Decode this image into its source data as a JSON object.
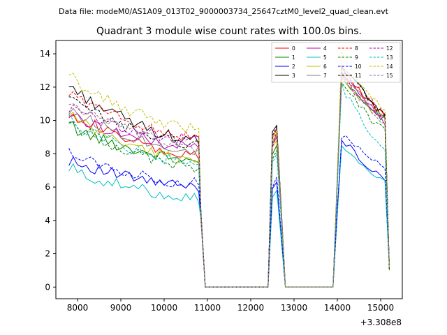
{
  "chart_data": {
    "type": "line",
    "suptitle": "Data file: modeM0/AS1A09_013T02_9000003734_25647cztM0_level2_quad_clean.evt",
    "title": "Quadrant 3 module wise count rates with 100.0s bins.",
    "xlabel": "",
    "ylabel": "",
    "x_offset_label": "+3.308e8",
    "xlim": [
      7500,
      15500
    ],
    "ylim": [
      -0.7,
      14.8
    ],
    "x_ticks": [
      8000,
      9000,
      10000,
      11000,
      12000,
      13000,
      14000,
      15000
    ],
    "x_tick_labels": [
      "8000",
      "9000",
      "10000",
      "11000",
      "12000",
      "13000",
      "14000",
      "15000"
    ],
    "y_ticks": [
      0,
      2,
      4,
      6,
      8,
      10,
      12,
      14
    ],
    "y_tick_labels": [
      "0",
      "2",
      "4",
      "6",
      "8",
      "10",
      "12",
      "14"
    ],
    "legend_position": "top-right",
    "legend_columns": 4,
    "segments": [
      {
        "start": 7800,
        "end": 10800,
        "step": 100,
        "kind": "decay",
        "tail": [
          10850,
          10950
        ]
      },
      {
        "start": 12400,
        "end": 12700,
        "kind": "spike",
        "tail": [
          12800
        ]
      },
      {
        "start": 13900,
        "end": 15100,
        "step": 100,
        "kind": "peak",
        "tail": [
          15200
        ]
      }
    ],
    "zero_gaps": [
      [
        10950,
        12400
      ],
      [
        12800,
        13900
      ]
    ],
    "series": [
      {
        "name": "0",
        "color": "#ff0000",
        "dash": "solid",
        "start": 10.5,
        "end": 7.8,
        "spike": 9.5,
        "peak": 13.0,
        "peak_end": 10.2
      },
      {
        "name": "1",
        "color": "#008000",
        "dash": "solid",
        "start": 9.6,
        "end": 7.6,
        "spike": 8.5,
        "peak": 12.5,
        "peak_end": 10.0
      },
      {
        "name": "2",
        "color": "#0000ff",
        "dash": "solid",
        "start": 7.6,
        "end": 6.0,
        "spike": 6.3,
        "peak": 9.0,
        "peak_end": 6.3
      },
      {
        "name": "3",
        "color": "#000000",
        "dash": "solid",
        "start": 12.0,
        "end": 8.8,
        "spike": 9.7,
        "peak": 13.4,
        "peak_end": 10.1
      },
      {
        "name": "4",
        "color": "#bf00bf",
        "dash": "solid",
        "start": 10.3,
        "end": 8.4,
        "spike": 9.0,
        "peak": 12.8,
        "peak_end": 9.8
      },
      {
        "name": "5",
        "color": "#00bfbf",
        "dash": "solid",
        "start": 7.0,
        "end": 5.4,
        "spike": 5.8,
        "peak": 8.4,
        "peak_end": 6.1
      },
      {
        "name": "6",
        "color": "#bfbf00",
        "dash": "solid",
        "start": 10.2,
        "end": 7.6,
        "spike": 8.8,
        "peak": 12.7,
        "peak_end": 9.9
      },
      {
        "name": "7",
        "color": "#808080",
        "dash": "solid",
        "start": 10.6,
        "end": 8.2,
        "spike": 9.2,
        "peak": 12.9,
        "peak_end": 9.9
      },
      {
        "name": "8",
        "color": "#ff0000",
        "dash": "dashed",
        "start": 11.6,
        "end": 9.0,
        "spike": 9.3,
        "peak": 13.0,
        "peak_end": 10.3
      },
      {
        "name": "9",
        "color": "#008000",
        "dash": "dashed",
        "start": 9.8,
        "end": 7.2,
        "spike": 8.2,
        "peak": 12.3,
        "peak_end": 9.2
      },
      {
        "name": "10",
        "color": "#0000ff",
        "dash": "dashed",
        "start": 8.0,
        "end": 6.2,
        "spike": 6.6,
        "peak": 9.2,
        "peak_end": 7.0
      },
      {
        "name": "11",
        "color": "#000000",
        "dash": "dashed",
        "start": 11.2,
        "end": 8.6,
        "spike": 9.6,
        "peak": 13.5,
        "peak_end": 10.2
      },
      {
        "name": "12",
        "color": "#bf00bf",
        "dash": "dashed",
        "start": 10.7,
        "end": 8.8,
        "spike": 9.0,
        "peak": 12.6,
        "peak_end": 10.0
      },
      {
        "name": "13",
        "color": "#00bfbf",
        "dash": "dashed",
        "start": 10.0,
        "end": 7.4,
        "spike": 8.0,
        "peak": 12.0,
        "peak_end": 8.2
      },
      {
        "name": "14",
        "color": "#bfbf00",
        "dash": "dashed",
        "start": 12.5,
        "end": 9.5,
        "spike": 9.4,
        "peak": 13.9,
        "peak_end": 10.6
      },
      {
        "name": "15",
        "color": "#808080",
        "dash": "dashed",
        "start": 11.0,
        "end": 8.4,
        "spike": 9.1,
        "peak": 12.8,
        "peak_end": 9.7
      }
    ]
  }
}
